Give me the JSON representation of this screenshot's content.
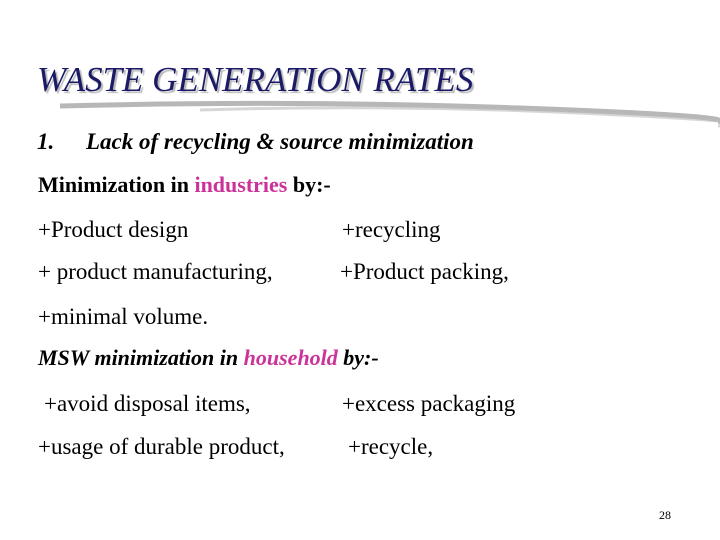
{
  "slide": {
    "title": "WASTE GENERATION RATES",
    "heading": {
      "number": "1.",
      "text": "Lack of recycling & source minimization"
    },
    "section1": {
      "lead": "Minimization in ",
      "highlight": "industries",
      "tail": " by:-",
      "items": [
        "+Product design",
        "+recycling",
        "+ product manufacturing,",
        "+Product packing,",
        "+minimal volume."
      ]
    },
    "section2": {
      "lead": "MSW minimization in ",
      "highlight": "household",
      "tail": " by:-",
      "items": [
        "+avoid disposal items,",
        "+excess packaging",
        "+usage of durable product,",
        "+recycle,"
      ]
    },
    "page_number": "28"
  }
}
